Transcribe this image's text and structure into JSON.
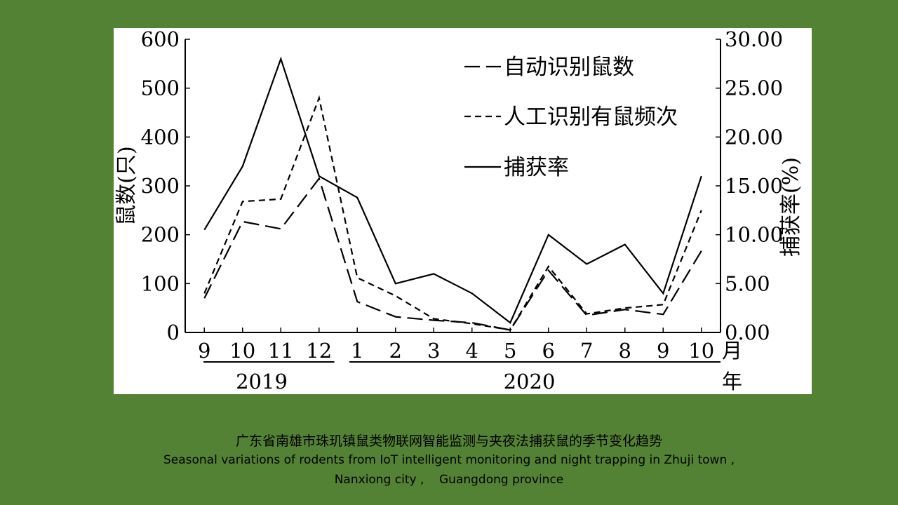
{
  "chart_data": {
    "type": "line",
    "categories": [
      "9",
      "10",
      "11",
      "12",
      "1",
      "2",
      "3",
      "4",
      "5",
      "6",
      "7",
      "8",
      "9",
      "10"
    ],
    "x_unit_label": "月",
    "x_groups": [
      {
        "label": "2019",
        "categories": [
          "9",
          "10",
          "11",
          "12"
        ]
      },
      {
        "label": "2020",
        "categories": [
          "1",
          "2",
          "3",
          "4",
          "5",
          "6",
          "7",
          "8",
          "9",
          "10"
        ]
      }
    ],
    "year_unit_label": "年",
    "y_left": {
      "label": "鼠数(只)",
      "ylim": [
        0,
        600
      ],
      "ticks": [
        "0",
        "100",
        "200",
        "300",
        "400",
        "500",
        "600"
      ]
    },
    "y_right": {
      "label": "捕获率(%)",
      "ylim": [
        0,
        30
      ],
      "ticks": [
        "0.00",
        "5.00",
        "10.00",
        "15.00",
        "20.00",
        "25.00",
        "30.00"
      ]
    },
    "legend_position": "top-right",
    "grid": false,
    "series": [
      {
        "name": "自动识别鼠数",
        "axis": "left",
        "style": "long-dash",
        "values": [
          70,
          227,
          212,
          315,
          63,
          32,
          25,
          20,
          5,
          127,
          35,
          47,
          37,
          167
        ]
      },
      {
        "name": "人工识别有鼠频次",
        "axis": "left",
        "style": "short-dash",
        "values": [
          80,
          268,
          273,
          480,
          112,
          75,
          28,
          18,
          5,
          135,
          38,
          50,
          57,
          250
        ]
      },
      {
        "name": "捕获率",
        "axis": "right",
        "style": "solid",
        "values": [
          10.5,
          17.0,
          28.0,
          16.0,
          13.8,
          5.0,
          6.0,
          4.0,
          1.0,
          10.0,
          7.0,
          9.0,
          4.0,
          16.0
        ]
      }
    ]
  },
  "caption": {
    "zh": "广东省南雄市珠玑镇鼠类物联网智能监测与夹夜法捕获鼠的季节变化趋势",
    "en_line1": "Seasonal variations of rodents from IoT intelligent monitoring and night trapping in Zhuji town ,",
    "en_line2": "Nanxiong city ,    Guangdong province"
  },
  "colors": {
    "background": "#548235",
    "panel": "#ffffff",
    "ink": "#000000"
  }
}
